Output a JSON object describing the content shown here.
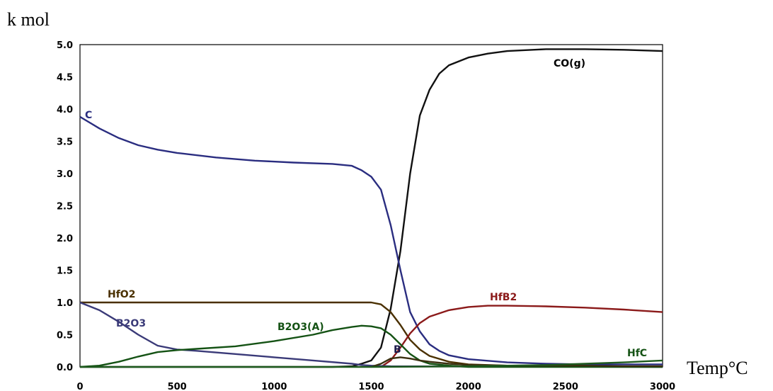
{
  "chart_data": {
    "type": "line",
    "ylabel": "k mol",
    "xlabel": "Temp°C",
    "xlim": [
      0,
      3000
    ],
    "ylim": [
      0,
      5
    ],
    "xticks": [
      "0",
      "500",
      "1000",
      "1500",
      "2000",
      "2500",
      "3000"
    ],
    "yticks": [
      "0.0",
      "0.5",
      "1.0",
      "1.5",
      "2.0",
      "2.5",
      "3.0",
      "3.5",
      "4.0",
      "4.5",
      "5.0"
    ],
    "grid": false,
    "series": [
      {
        "name": "CO(g)",
        "color": "#111111",
        "points": [
          [
            0,
            0
          ],
          [
            1300,
            0
          ],
          [
            1400,
            0.01
          ],
          [
            1450,
            0.05
          ],
          [
            1500,
            0.1
          ],
          [
            1550,
            0.3
          ],
          [
            1600,
            0.9
          ],
          [
            1650,
            1.8
          ],
          [
            1700,
            3.0
          ],
          [
            1750,
            3.9
          ],
          [
            1800,
            4.3
          ],
          [
            1850,
            4.55
          ],
          [
            1900,
            4.68
          ],
          [
            2000,
            4.8
          ],
          [
            2100,
            4.86
          ],
          [
            2200,
            4.9
          ],
          [
            2400,
            4.93
          ],
          [
            2600,
            4.93
          ],
          [
            2800,
            4.92
          ],
          [
            3000,
            4.9
          ]
        ]
      },
      {
        "name": "C",
        "color": "#2a2d80",
        "points": [
          [
            0,
            3.88
          ],
          [
            100,
            3.7
          ],
          [
            200,
            3.55
          ],
          [
            300,
            3.44
          ],
          [
            400,
            3.37
          ],
          [
            500,
            3.32
          ],
          [
            700,
            3.25
          ],
          [
            900,
            3.2
          ],
          [
            1100,
            3.17
          ],
          [
            1300,
            3.15
          ],
          [
            1400,
            3.12
          ],
          [
            1450,
            3.05
          ],
          [
            1500,
            2.95
          ],
          [
            1550,
            2.75
          ],
          [
            1600,
            2.2
          ],
          [
            1650,
            1.5
          ],
          [
            1700,
            0.85
          ],
          [
            1750,
            0.55
          ],
          [
            1800,
            0.35
          ],
          [
            1850,
            0.25
          ],
          [
            1900,
            0.18
          ],
          [
            2000,
            0.12
          ],
          [
            2200,
            0.07
          ],
          [
            2400,
            0.05
          ],
          [
            2600,
            0.04
          ],
          [
            3000,
            0.04
          ]
        ]
      },
      {
        "name": "HfO2",
        "color": "#4a3000",
        "points": [
          [
            0,
            1.0
          ],
          [
            500,
            1.0
          ],
          [
            1000,
            1.0
          ],
          [
            1400,
            1.0
          ],
          [
            1500,
            1.0
          ],
          [
            1550,
            0.97
          ],
          [
            1600,
            0.85
          ],
          [
            1650,
            0.65
          ],
          [
            1700,
            0.42
          ],
          [
            1750,
            0.27
          ],
          [
            1800,
            0.17
          ],
          [
            1900,
            0.08
          ],
          [
            2000,
            0.04
          ],
          [
            2200,
            0.02
          ],
          [
            2500,
            0.01
          ],
          [
            3000,
            0.01
          ]
        ]
      },
      {
        "name": "HfB2",
        "color": "#8b1a1a",
        "points": [
          [
            1550,
            0
          ],
          [
            1600,
            0.1
          ],
          [
            1650,
            0.3
          ],
          [
            1700,
            0.52
          ],
          [
            1750,
            0.68
          ],
          [
            1800,
            0.78
          ],
          [
            1900,
            0.88
          ],
          [
            2000,
            0.93
          ],
          [
            2100,
            0.95
          ],
          [
            2200,
            0.95
          ],
          [
            2400,
            0.94
          ],
          [
            2600,
            0.92
          ],
          [
            2800,
            0.89
          ],
          [
            3000,
            0.85
          ]
        ]
      },
      {
        "name": "B2O3",
        "color": "#3a3a78",
        "points": [
          [
            0,
            1.0
          ],
          [
            100,
            0.88
          ],
          [
            200,
            0.7
          ],
          [
            300,
            0.5
          ],
          [
            400,
            0.33
          ],
          [
            500,
            0.27
          ],
          [
            600,
            0.25
          ],
          [
            800,
            0.2
          ],
          [
            1000,
            0.15
          ],
          [
            1200,
            0.1
          ],
          [
            1400,
            0.05
          ],
          [
            1450,
            0.03
          ],
          [
            1500,
            0.02
          ],
          [
            1600,
            0.01
          ],
          [
            3000,
            0.0
          ]
        ]
      },
      {
        "name": "B2O3(A)",
        "color": "#145214",
        "points": [
          [
            0,
            0
          ],
          [
            100,
            0.02
          ],
          [
            200,
            0.08
          ],
          [
            300,
            0.16
          ],
          [
            400,
            0.23
          ],
          [
            500,
            0.26
          ],
          [
            600,
            0.28
          ],
          [
            800,
            0.32
          ],
          [
            1000,
            0.4
          ],
          [
            1200,
            0.5
          ],
          [
            1300,
            0.57
          ],
          [
            1400,
            0.62
          ],
          [
            1450,
            0.64
          ],
          [
            1500,
            0.63
          ],
          [
            1550,
            0.6
          ],
          [
            1600,
            0.5
          ],
          [
            1650,
            0.35
          ],
          [
            1700,
            0.2
          ],
          [
            1750,
            0.1
          ],
          [
            1800,
            0.05
          ],
          [
            1900,
            0.02
          ],
          [
            2000,
            0.0
          ],
          [
            3000,
            0.0
          ]
        ]
      },
      {
        "name": "B",
        "color": "#3a3010",
        "points": [
          [
            1500,
            0
          ],
          [
            1550,
            0.05
          ],
          [
            1600,
            0.13
          ],
          [
            1650,
            0.15
          ],
          [
            1700,
            0.13
          ],
          [
            1750,
            0.1
          ],
          [
            1800,
            0.08
          ],
          [
            1900,
            0.05
          ],
          [
            2000,
            0.03
          ],
          [
            2200,
            0.02
          ],
          [
            2400,
            0.02
          ],
          [
            2600,
            0.02
          ],
          [
            2800,
            0.01
          ],
          [
            3000,
            0.01
          ]
        ]
      },
      {
        "name": "HfC",
        "color": "#1e5a1e",
        "points": [
          [
            0,
            0
          ],
          [
            1000,
            0
          ],
          [
            1500,
            0
          ],
          [
            2000,
            0.01
          ],
          [
            2200,
            0.02
          ],
          [
            2400,
            0.03
          ],
          [
            2600,
            0.05
          ],
          [
            2800,
            0.07
          ],
          [
            3000,
            0.1
          ]
        ]
      }
    ],
    "labels": [
      {
        "text": "CO(g)",
        "color": "#000000"
      },
      {
        "text": "C",
        "color": "#2a2d80"
      },
      {
        "text": "HfO2",
        "color": "#4a3000"
      },
      {
        "text": "B2O3",
        "color": "#3a3a78"
      },
      {
        "text": "B2O3(A)",
        "color": "#145214"
      },
      {
        "text": "HfB2",
        "color": "#8b1a1a"
      },
      {
        "text": "B",
        "color": "#1a1a4a"
      },
      {
        "text": "HfC",
        "color": "#145214"
      }
    ]
  }
}
